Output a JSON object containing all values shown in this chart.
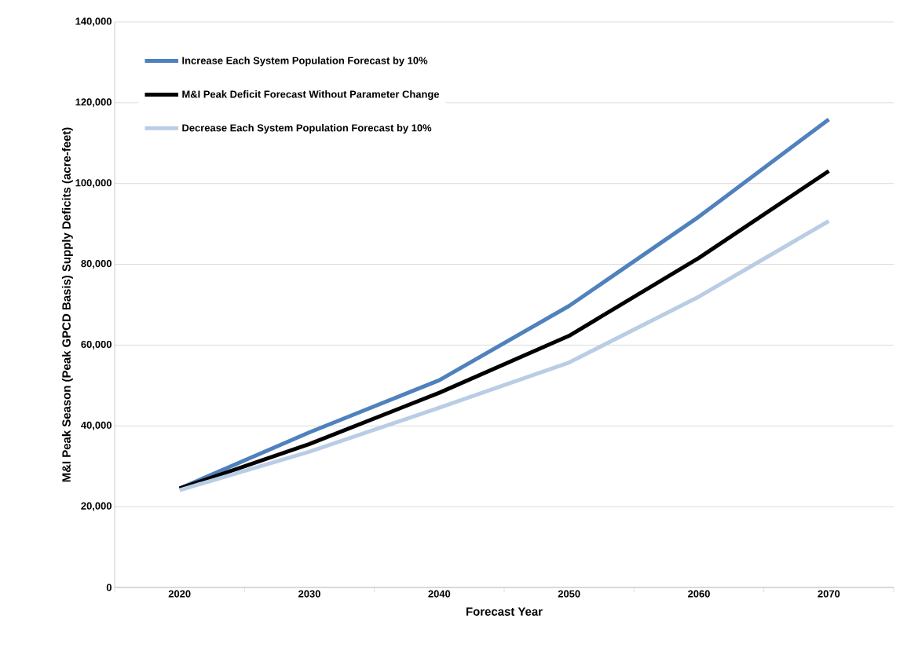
{
  "chart_data": {
    "type": "line",
    "xlabel": "Forecast Year",
    "ylabel": "M&I Peak Season (Peak GPCD Basis) Supply Deficits (acre-feet)",
    "categories": [
      "2020",
      "2030",
      "2040",
      "2050",
      "2060",
      "2070"
    ],
    "series": [
      {
        "name": "Increase Each System Population Forecast by 10%",
        "color": "#4f81bd",
        "values": [
          24500,
          38400,
          51300,
          69700,
          91800,
          115900
        ]
      },
      {
        "name": "M&I Peak Deficit Forecast Without Parameter Change",
        "color": "#000000",
        "values": [
          24500,
          35500,
          48200,
          62300,
          81600,
          103100
        ]
      },
      {
        "name": "Decrease Each System Population Forecast by 10%",
        "color": "#b9cde5",
        "values": [
          24100,
          33600,
          44500,
          55700,
          72000,
          90700
        ]
      }
    ],
    "ylim": [
      0,
      140000
    ],
    "yticks": [
      {
        "value": 0,
        "label": "0"
      },
      {
        "value": 20000,
        "label": "20,000"
      },
      {
        "value": 40000,
        "label": "40,000"
      },
      {
        "value": 60000,
        "label": "60,000"
      },
      {
        "value": 80000,
        "label": "80,000"
      },
      {
        "value": 100000,
        "label": "100,000"
      },
      {
        "value": 120000,
        "label": "120,000"
      },
      {
        "value": 140000,
        "label": "140,000"
      }
    ],
    "grid": "y",
    "legend": "top left",
    "marker": "none",
    "line_style": "solid"
  }
}
